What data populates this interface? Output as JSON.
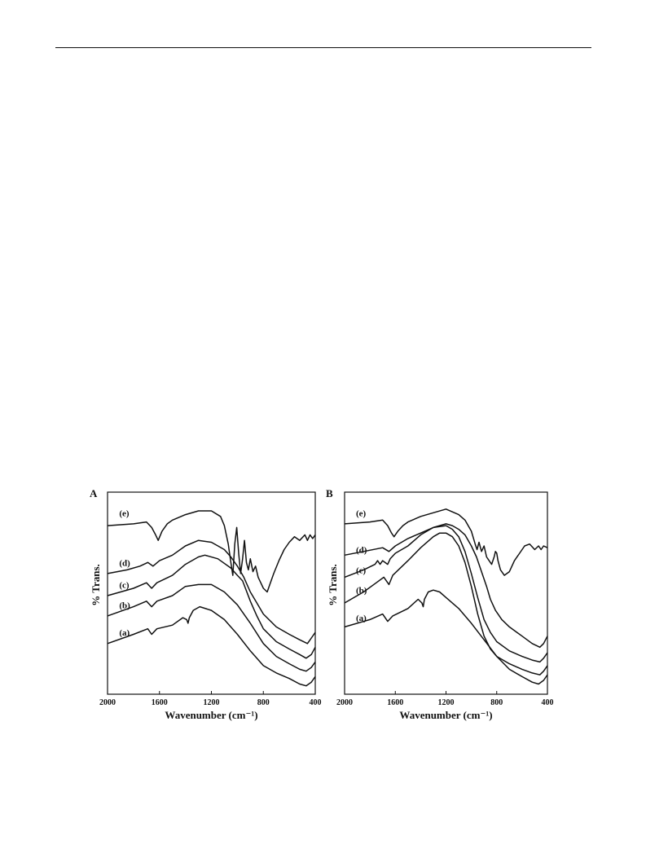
{
  "page": {
    "body_text": ""
  },
  "chart_data": [
    {
      "type": "line",
      "panel": "A",
      "xlabel": "Wavenumber (cm⁻¹)",
      "ylabel": "% Trans.",
      "xlim": [
        2000,
        400
      ],
      "x_ticks": [
        2000,
        1600,
        1200,
        800,
        400
      ],
      "grid": false,
      "series": [
        {
          "name": "(a)",
          "label_x": 1910,
          "label_level": 0.3,
          "x": [
            2000,
            1800,
            1690,
            1660,
            1620,
            1500,
            1420,
            1390,
            1380,
            1370,
            1340,
            1290,
            1200,
            1100,
            1000,
            900,
            800,
            700,
            600,
            520,
            470,
            430,
            400
          ],
          "y": [
            0.24,
            0.29,
            0.32,
            0.29,
            0.32,
            0.34,
            0.38,
            0.37,
            0.35,
            0.38,
            0.42,
            0.44,
            0.42,
            0.37,
            0.29,
            0.2,
            0.12,
            0.08,
            0.05,
            0.02,
            0.01,
            0.03,
            0.06
          ]
        },
        {
          "name": "(b)",
          "label_x": 1910,
          "label_level": 0.45,
          "x": [
            2000,
            1800,
            1700,
            1660,
            1620,
            1500,
            1400,
            1300,
            1200,
            1100,
            1000,
            900,
            800,
            700,
            600,
            520,
            470,
            430,
            400
          ],
          "y": [
            0.39,
            0.44,
            0.47,
            0.44,
            0.47,
            0.5,
            0.55,
            0.56,
            0.56,
            0.52,
            0.45,
            0.35,
            0.24,
            0.17,
            0.13,
            0.1,
            0.09,
            0.11,
            0.14
          ]
        },
        {
          "name": "(c)",
          "label_x": 1910,
          "label_level": 0.56,
          "x": [
            2000,
            1800,
            1700,
            1660,
            1620,
            1500,
            1400,
            1300,
            1250,
            1150,
            1050,
            1000,
            960,
            900,
            850,
            800,
            700,
            600,
            520,
            470,
            430,
            400
          ],
          "y": [
            0.5,
            0.54,
            0.57,
            0.54,
            0.57,
            0.61,
            0.67,
            0.71,
            0.72,
            0.7,
            0.65,
            0.61,
            0.58,
            0.47,
            0.39,
            0.32,
            0.25,
            0.21,
            0.18,
            0.16,
            0.18,
            0.22
          ]
        },
        {
          "name": "(d)",
          "label_x": 1910,
          "label_level": 0.68,
          "x": [
            2000,
            1850,
            1750,
            1690,
            1650,
            1600,
            1500,
            1400,
            1300,
            1200,
            1150,
            1100,
            1050,
            1000,
            950,
            900,
            850,
            800,
            700,
            600,
            520,
            460,
            430,
            400
          ],
          "y": [
            0.62,
            0.64,
            0.66,
            0.68,
            0.66,
            0.69,
            0.72,
            0.77,
            0.8,
            0.79,
            0.77,
            0.75,
            0.71,
            0.66,
            0.6,
            0.52,
            0.46,
            0.4,
            0.33,
            0.29,
            0.26,
            0.24,
            0.27,
            0.3
          ]
        },
        {
          "name": "(e)",
          "label_x": 1910,
          "label_level": 0.95,
          "x": [
            2000,
            1800,
            1700,
            1660,
            1630,
            1610,
            1580,
            1540,
            1500,
            1400,
            1300,
            1200,
            1130,
            1100,
            1070,
            1050,
            1035,
            1020,
            1005,
            990,
            975,
            960,
            945,
            930,
            915,
            900,
            880,
            860,
            840,
            820,
            800,
            770,
            750,
            720,
            680,
            640,
            600,
            560,
            520,
            480,
            460,
            440,
            420,
            400
          ],
          "y": [
            0.88,
            0.89,
            0.9,
            0.87,
            0.83,
            0.8,
            0.85,
            0.89,
            0.91,
            0.94,
            0.96,
            0.96,
            0.93,
            0.88,
            0.78,
            0.68,
            0.61,
            0.78,
            0.87,
            0.73,
            0.62,
            0.7,
            0.8,
            0.68,
            0.64,
            0.7,
            0.63,
            0.66,
            0.6,
            0.57,
            0.54,
            0.52,
            0.56,
            0.62,
            0.69,
            0.75,
            0.79,
            0.82,
            0.8,
            0.83,
            0.8,
            0.83,
            0.81,
            0.83
          ]
        }
      ]
    },
    {
      "type": "line",
      "panel": "B",
      "xlabel": "Wavenumber (cm⁻¹)",
      "ylabel": "% Trans.",
      "xlim": [
        2000,
        400
      ],
      "x_ticks": [
        2000,
        1600,
        1200,
        800,
        400
      ],
      "grid": false,
      "series": [
        {
          "name": "(a)",
          "label_x": 1910,
          "label_level": 0.38,
          "x": [
            2000,
            1800,
            1700,
            1660,
            1620,
            1500,
            1420,
            1390,
            1380,
            1370,
            1340,
            1300,
            1250,
            1200,
            1100,
            1000,
            900,
            800,
            700,
            600,
            520,
            470,
            430,
            400
          ],
          "y": [
            0.33,
            0.37,
            0.4,
            0.36,
            0.39,
            0.43,
            0.48,
            0.46,
            0.44,
            0.48,
            0.52,
            0.53,
            0.52,
            0.49,
            0.43,
            0.35,
            0.26,
            0.17,
            0.1,
            0.06,
            0.03,
            0.02,
            0.04,
            0.07
          ]
        },
        {
          "name": "(b)",
          "label_x": 1910,
          "label_level": 0.53,
          "x": [
            2000,
            1850,
            1750,
            1690,
            1650,
            1620,
            1500,
            1400,
            1300,
            1250,
            1200,
            1150,
            1100,
            1050,
            1000,
            950,
            900,
            850,
            800,
            700,
            600,
            520,
            460,
            430,
            400
          ],
          "y": [
            0.46,
            0.52,
            0.57,
            0.6,
            0.56,
            0.61,
            0.69,
            0.76,
            0.82,
            0.84,
            0.84,
            0.82,
            0.77,
            0.68,
            0.55,
            0.4,
            0.28,
            0.21,
            0.17,
            0.13,
            0.1,
            0.08,
            0.07,
            0.09,
            0.12
          ]
        },
        {
          "name": "(c)",
          "label_x": 1910,
          "label_level": 0.64,
          "x": [
            2000,
            1850,
            1760,
            1740,
            1720,
            1700,
            1660,
            1640,
            1600,
            1500,
            1400,
            1300,
            1200,
            1150,
            1100,
            1050,
            1000,
            950,
            900,
            850,
            800,
            700,
            600,
            520,
            460,
            430,
            400
          ],
          "y": [
            0.6,
            0.64,
            0.67,
            0.69,
            0.67,
            0.69,
            0.67,
            0.7,
            0.73,
            0.77,
            0.83,
            0.87,
            0.88,
            0.86,
            0.82,
            0.74,
            0.62,
            0.49,
            0.37,
            0.3,
            0.25,
            0.2,
            0.17,
            0.15,
            0.14,
            0.16,
            0.19
          ]
        },
        {
          "name": "(d)",
          "label_x": 1910,
          "label_level": 0.75,
          "x": [
            2000,
            1850,
            1700,
            1650,
            1600,
            1500,
            1400,
            1300,
            1200,
            1150,
            1100,
            1050,
            1000,
            960,
            920,
            880,
            850,
            830,
            810,
            790,
            760,
            700,
            600,
            520,
            460,
            430,
            400
          ],
          "y": [
            0.72,
            0.74,
            0.76,
            0.74,
            0.77,
            0.81,
            0.84,
            0.87,
            0.89,
            0.88,
            0.86,
            0.83,
            0.77,
            0.71,
            0.63,
            0.55,
            0.48,
            0.45,
            0.42,
            0.4,
            0.37,
            0.33,
            0.28,
            0.24,
            0.22,
            0.24,
            0.28
          ]
        },
        {
          "name": "(e)",
          "label_x": 1910,
          "label_level": 0.95,
          "x": [
            2000,
            1800,
            1700,
            1660,
            1630,
            1610,
            1580,
            1540,
            1500,
            1400,
            1300,
            1200,
            1100,
            1050,
            1000,
            970,
            955,
            940,
            920,
            900,
            880,
            860,
            840,
            820,
            810,
            800,
            790,
            770,
            740,
            700,
            660,
            620,
            580,
            540,
            500,
            470,
            450,
            430,
            400
          ],
          "y": [
            0.89,
            0.9,
            0.91,
            0.88,
            0.84,
            0.82,
            0.85,
            0.88,
            0.9,
            0.93,
            0.95,
            0.97,
            0.94,
            0.91,
            0.85,
            0.78,
            0.75,
            0.79,
            0.74,
            0.77,
            0.71,
            0.69,
            0.67,
            0.71,
            0.74,
            0.73,
            0.69,
            0.64,
            0.61,
            0.63,
            0.69,
            0.73,
            0.77,
            0.78,
            0.75,
            0.77,
            0.75,
            0.77,
            0.76
          ]
        }
      ]
    }
  ]
}
